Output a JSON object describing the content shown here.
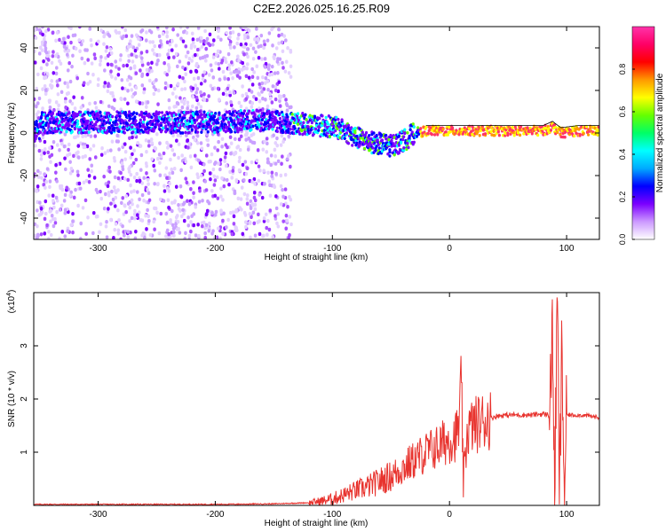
{
  "title": "C2E2.2026.025.16.25.R09",
  "chart_data": [
    {
      "type": "heatmap",
      "xlabel": "Height of straight line (km)",
      "ylabel": "Frequency (Hz)",
      "xlim": [
        -355,
        128
      ],
      "ylim": [
        -50,
        50
      ],
      "xticks": [
        -300,
        -200,
        -100,
        0,
        100
      ],
      "yticks": [
        -40,
        -20,
        0,
        20,
        40
      ],
      "grid": false,
      "colorbar": {
        "label": "Normalized spectral amplitude",
        "range": [
          0,
          1
        ],
        "ticks": [
          "0.0",
          "0.2",
          "0.4",
          "0.6",
          "0.8"
        ],
        "colors": [
          "#ffffff",
          "#cc99ff",
          "#7b00ff",
          "#0000ff",
          "#00aaff",
          "#00ffff",
          "#00ff66",
          "#66ff00",
          "#ffff00",
          "#ff9900",
          "#ff0000",
          "#ff0066",
          "#ff33aa"
        ]
      },
      "ridge": [
        {
          "x": -350,
          "y": 5
        },
        {
          "x": -300,
          "y": 5
        },
        {
          "x": -250,
          "y": 5
        },
        {
          "x": -200,
          "y": 5
        },
        {
          "x": -160,
          "y": 6
        },
        {
          "x": -140,
          "y": 5
        },
        {
          "x": -120,
          "y": 4
        },
        {
          "x": -100,
          "y": 3
        },
        {
          "x": -90,
          "y": 1
        },
        {
          "x": -80,
          "y": -2
        },
        {
          "x": -70,
          "y": -4
        },
        {
          "x": -60,
          "y": -5
        },
        {
          "x": -50,
          "y": -6
        },
        {
          "x": -40,
          "y": -4
        },
        {
          "x": -30,
          "y": 0
        },
        {
          "x": -20,
          "y": 1
        },
        {
          "x": 0,
          "y": 1
        },
        {
          "x": 20,
          "y": 1
        },
        {
          "x": 40,
          "y": 1
        },
        {
          "x": 60,
          "y": 1
        },
        {
          "x": 80,
          "y": 1
        },
        {
          "x": 88,
          "y": 3
        },
        {
          "x": 95,
          "y": 0
        },
        {
          "x": 110,
          "y": 1
        },
        {
          "x": 128,
          "y": 1
        }
      ]
    },
    {
      "type": "line",
      "xlabel": "Height of straight line (km)",
      "ylabel": "SNR (10 * v/v)",
      "yscale_label": "(x10",
      "yscale_exp": "4",
      "yscale_close": ")",
      "xlim": [
        -355,
        128
      ],
      "ylim": [
        0,
        4
      ],
      "xticks": [
        -300,
        -200,
        -100,
        0,
        100
      ],
      "yticks": [
        1,
        2,
        3
      ],
      "grid": false,
      "color": "#e8332e",
      "series": [
        {
          "x": [
            -355,
            -300,
            -250,
            -200,
            -150,
            -120,
            -110,
            -100,
            -90,
            -80,
            -70,
            -60,
            -50,
            -40,
            -30,
            -20,
            -10,
            0,
            5,
            8,
            10,
            12,
            15,
            20,
            30,
            40,
            50,
            60,
            70,
            80,
            85,
            88,
            90,
            92,
            94,
            96,
            98,
            100,
            110,
            120,
            128
          ],
          "y": [
            0.02,
            0.02,
            0.02,
            0.02,
            0.03,
            0.05,
            0.08,
            0.12,
            0.2,
            0.28,
            0.35,
            0.45,
            0.55,
            0.7,
            0.85,
            1.0,
            1.1,
            1.25,
            1.3,
            1.45,
            2.45,
            0.3,
            1.4,
            1.5,
            1.6,
            1.68,
            1.7,
            1.7,
            1.7,
            1.72,
            1.7,
            3.15,
            0.2,
            3.95,
            0.15,
            3.0,
            0.2,
            1.7,
            1.7,
            1.68,
            1.65
          ]
        }
      ]
    }
  ]
}
